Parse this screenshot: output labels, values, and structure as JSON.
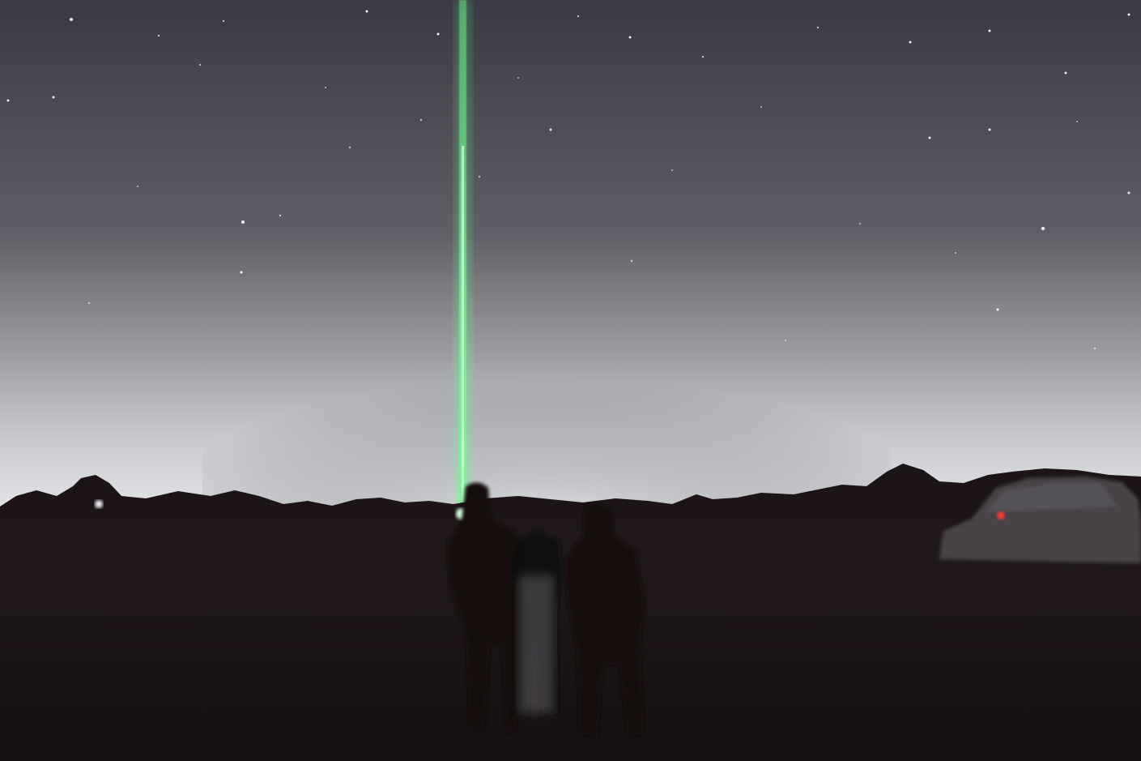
{
  "scene": {
    "description_tags": [
      "night-sky",
      "stars",
      "green-laser-beam",
      "horizon-glow",
      "tree-line",
      "people-silhouettes",
      "parked-car",
      "grass-field"
    ],
    "colors": {
      "sky_top": "#3a3a44",
      "sky_mid": "#5f5e66",
      "sky_glow": "#c9cbcf",
      "horizon_bright": "#e4e6e8",
      "trees": "#1c1416",
      "ground": "#231a1b",
      "ground_dark": "#150f10",
      "laser": "#6cff8a",
      "laser_core": "#d8ffe0",
      "star": "#f2f4ff",
      "car": "#4a4347",
      "car_light": "#ff3b3b",
      "people": "#120c0e",
      "lamp": "#f4f4ff"
    }
  }
}
